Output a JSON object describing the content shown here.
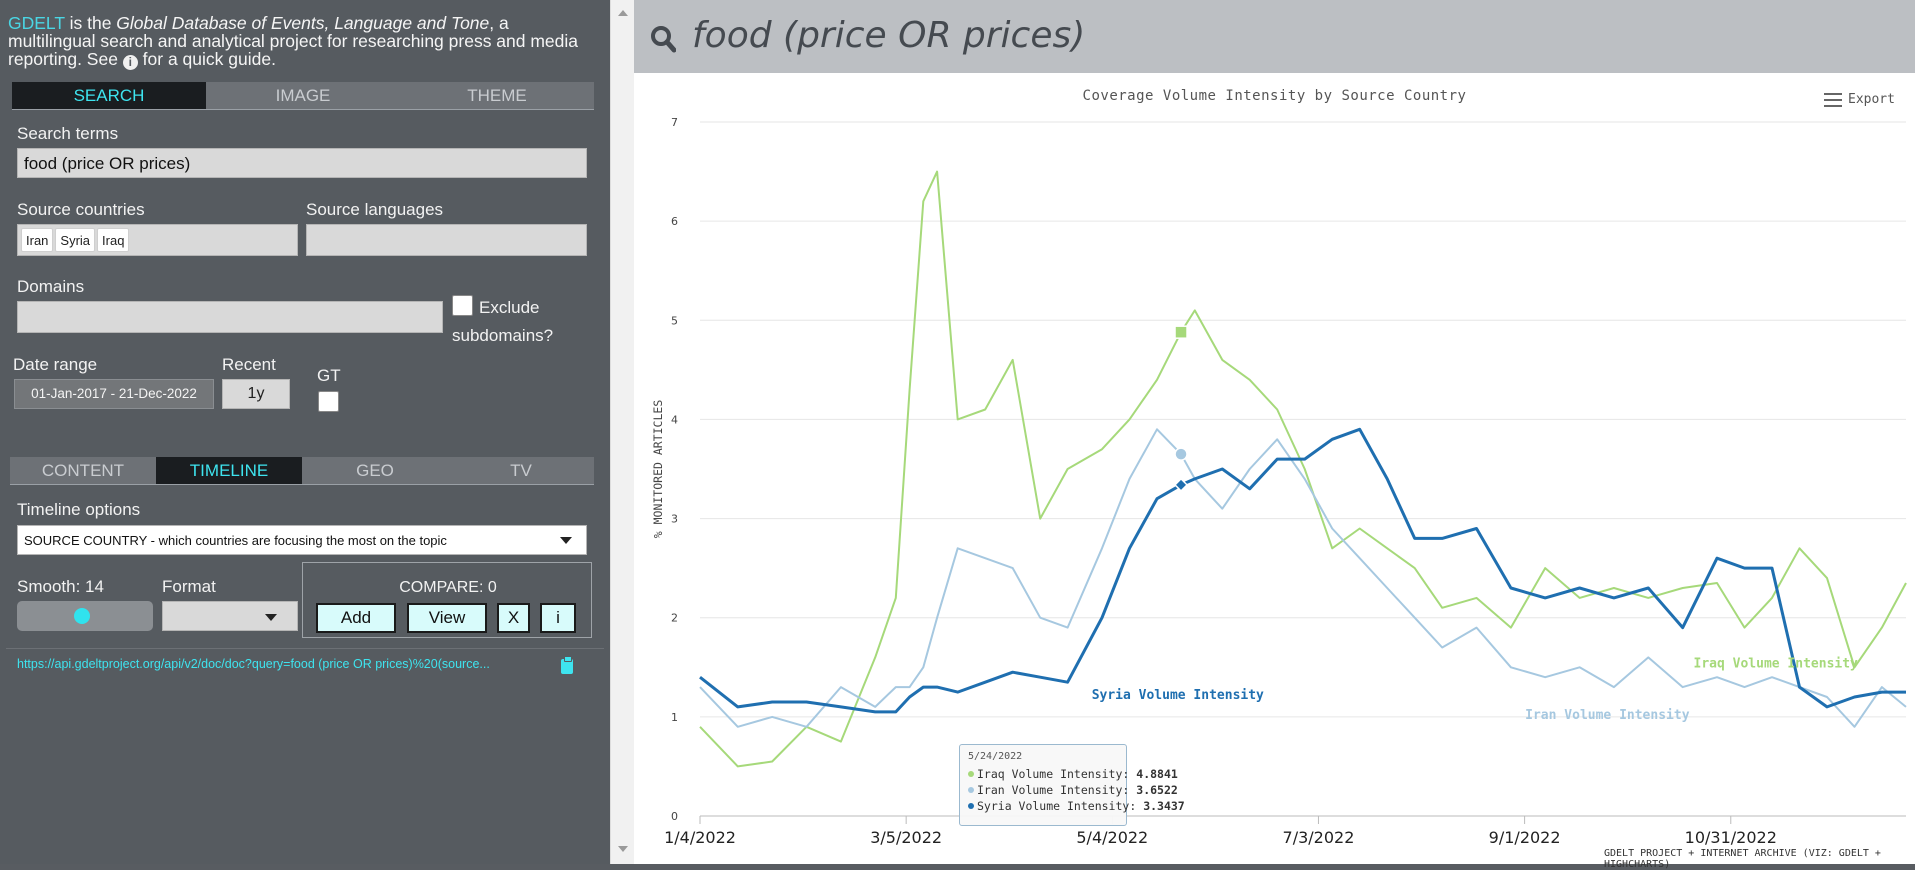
{
  "intro": {
    "brand": "GDELT",
    "text1": " is the ",
    "italic": "Global Database of Events, Language and Tone",
    "text2": ", a multilingual search and analytical project for researching press and media reporting. See ",
    "text3": " for a quick guide."
  },
  "top_tabs": [
    "SEARCH",
    "IMAGE",
    "THEME"
  ],
  "search": {
    "label": "Search terms",
    "value": "food (price OR prices)"
  },
  "source_countries": {
    "label": "Source countries",
    "chips": [
      "Iran",
      "Syria",
      "Iraq"
    ]
  },
  "source_languages": {
    "label": "Source languages"
  },
  "domains": {
    "label": "Domains",
    "exclude_label": "Exclude subdomains?"
  },
  "date_range": {
    "label": "Date range",
    "value": "01-Jan-2017 - 21-Dec-2022"
  },
  "recent": {
    "label": "Recent",
    "value": "1y"
  },
  "gt": {
    "label": "GT"
  },
  "mode_tabs": [
    "CONTENT",
    "TIMELINE",
    "GEO",
    "TV"
  ],
  "timeline_options": {
    "label": "Timeline options",
    "value": "SOURCE COUNTRY - which countries are focusing the most on the topic"
  },
  "smooth": {
    "label": "Smooth: 14",
    "value": 14
  },
  "format": {
    "label": "Format"
  },
  "compare": {
    "label": "COMPARE: 0",
    "buttons": [
      "Add",
      "View",
      "X",
      "i"
    ]
  },
  "api_url": "https://api.gdeltproject.org/api/v2/doc/doc?query=food (price OR prices)%20(source...",
  "header": {
    "query": "food (price OR prices)"
  },
  "export_label": "Export",
  "credit": "GDELT PROJECT + INTERNET ARCHIVE (VIZ: GDELT + HIGHCHARTS)",
  "tooltip": {
    "date": "5/24/2022",
    "rows": [
      {
        "name": "Iraq Volume Intensity",
        "value": "4.8841",
        "color": "#a6d97a"
      },
      {
        "name": "Iran Volume Intensity",
        "value": "3.6522",
        "color": "#a6c8e0"
      },
      {
        "name": "Syria Volume Intensity",
        "value": "3.3437",
        "color": "#1f6fb0"
      }
    ]
  },
  "chart_data": {
    "type": "line",
    "title": "Coverage Volume Intensity by Source Country",
    "ylabel": "% MONITORED ARTICLES",
    "ylim": [
      0,
      7
    ],
    "yticks": [
      "0",
      "1",
      "2",
      "3",
      "4",
      "5",
      "6",
      "7"
    ],
    "xtick_labels": [
      "1/4/2022",
      "3/5/2022",
      "5/4/2022",
      "7/3/2022",
      "9/1/2022",
      "10/31/2022"
    ],
    "x": [
      "2022-01-04",
      "2022-01-15",
      "2022-01-25",
      "2022-02-04",
      "2022-02-14",
      "2022-02-24",
      "2022-03-02",
      "2022-03-06",
      "2022-03-10",
      "2022-03-14",
      "2022-03-20",
      "2022-03-28",
      "2022-04-05",
      "2022-04-13",
      "2022-04-21",
      "2022-05-01",
      "2022-05-09",
      "2022-05-17",
      "2022-05-24",
      "2022-05-28",
      "2022-06-05",
      "2022-06-13",
      "2022-06-21",
      "2022-06-29",
      "2022-07-07",
      "2022-07-15",
      "2022-07-23",
      "2022-07-31",
      "2022-08-08",
      "2022-08-18",
      "2022-08-28",
      "2022-09-07",
      "2022-09-17",
      "2022-09-27",
      "2022-10-07",
      "2022-10-17",
      "2022-10-27",
      "2022-11-04",
      "2022-11-12",
      "2022-11-20",
      "2022-11-28",
      "2022-12-06",
      "2022-12-14",
      "2022-12-21"
    ],
    "series": [
      {
        "name": "Iraq Volume Intensity",
        "color": "#a6d97a",
        "values": [
          0.9,
          0.5,
          0.55,
          0.9,
          0.75,
          1.6,
          2.2,
          4.3,
          6.2,
          6.5,
          4.0,
          4.1,
          4.6,
          3.0,
          3.5,
          3.7,
          4.0,
          4.4,
          4.88,
          5.1,
          4.6,
          4.4,
          4.1,
          3.5,
          2.7,
          2.9,
          2.7,
          2.5,
          2.1,
          2.2,
          1.9,
          2.5,
          2.2,
          2.3,
          2.2,
          2.3,
          2.35,
          1.9,
          2.2,
          2.7,
          2.4,
          1.5,
          1.9,
          2.35
        ]
      },
      {
        "name": "Iran Volume Intensity",
        "color": "#a6c8e0",
        "values": [
          1.3,
          0.9,
          1.0,
          0.9,
          1.3,
          1.1,
          1.3,
          1.3,
          1.5,
          2.0,
          2.7,
          2.6,
          2.5,
          2.0,
          1.9,
          2.7,
          3.4,
          3.9,
          3.65,
          3.4,
          3.1,
          3.5,
          3.8,
          3.4,
          2.9,
          2.6,
          2.3,
          2.0,
          1.7,
          1.9,
          1.5,
          1.4,
          1.5,
          1.3,
          1.6,
          1.3,
          1.4,
          1.3,
          1.4,
          1.3,
          1.2,
          0.9,
          1.3,
          1.1
        ]
      },
      {
        "name": "Syria Volume Intensity",
        "color": "#1f6fb0",
        "values": [
          1.4,
          1.1,
          1.15,
          1.15,
          1.1,
          1.05,
          1.05,
          1.2,
          1.3,
          1.3,
          1.25,
          1.35,
          1.45,
          1.4,
          1.35,
          2.0,
          2.7,
          3.2,
          3.34,
          3.4,
          3.5,
          3.3,
          3.6,
          3.6,
          3.8,
          3.9,
          3.4,
          2.8,
          2.8,
          2.9,
          2.3,
          2.2,
          2.3,
          2.2,
          2.3,
          1.9,
          2.6,
          2.5,
          2.5,
          1.3,
          1.1,
          1.2,
          1.25,
          1.25
        ]
      }
    ],
    "series_labels": [
      {
        "text": "Syria Volume Intensity",
        "color": "#1f6fb0"
      },
      {
        "text": "Iran Volume Intensity",
        "color": "#a6c8e0"
      },
      {
        "text": "Iraq Volume Intensity",
        "color": "#a6d97a"
      }
    ],
    "highlight_date": "2022-05-24"
  }
}
